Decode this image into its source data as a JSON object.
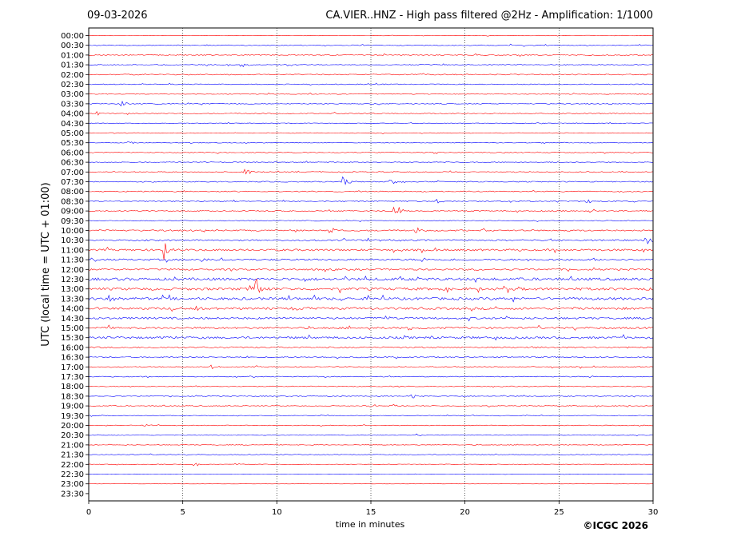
{
  "header": {
    "date": "09-03-2026",
    "title": "CA.VIER..HNZ - High pass filtered @2Hz - Amplification: 1/1000"
  },
  "credit": "©ICGC 2026",
  "chart_data": {
    "type": "line",
    "title": "CA.VIER..HNZ - High pass filtered @2Hz - Amplification: 1/1000",
    "xlabel": "time in minutes",
    "ylabel": "UTC (local time = UTC + 01:00)",
    "xlim": [
      0,
      30
    ],
    "x_ticks": [
      0,
      5,
      10,
      15,
      20,
      25,
      30
    ],
    "grid": "vertical dotted lines at x ticks",
    "row_colors": [
      "#ff0000",
      "#0000ff"
    ],
    "row_labels": [
      "00:00",
      "00:30",
      "01:00",
      "01:30",
      "02:00",
      "02:30",
      "03:00",
      "03:30",
      "04:00",
      "04:30",
      "05:00",
      "05:30",
      "06:00",
      "06:30",
      "07:00",
      "07:30",
      "08:00",
      "08:30",
      "09:00",
      "09:30",
      "10:00",
      "10:30",
      "11:00",
      "11:30",
      "12:00",
      "12:30",
      "13:00",
      "13:30",
      "14:00",
      "14:30",
      "15:00",
      "15:30",
      "16:00",
      "16:30",
      "17:00",
      "17:30",
      "18:00",
      "18:30",
      "19:00",
      "19:30",
      "20:00",
      "20:30",
      "21:00",
      "21:30",
      "22:00",
      "22:30",
      "23:00",
      "23:30"
    ],
    "trace_end_row": 47,
    "noise_level": [
      0.3,
      0.5,
      0.6,
      0.5,
      0.6,
      0.5,
      0.5,
      0.5,
      0.6,
      0.4,
      0.4,
      0.4,
      0.5,
      0.5,
      0.6,
      0.6,
      0.6,
      0.7,
      0.7,
      0.5,
      0.9,
      0.9,
      1.2,
      1.1,
      1.1,
      1.6,
      1.6,
      1.6,
      1.4,
      1.2,
      1.2,
      1.3,
      0.9,
      0.7,
      0.6,
      0.5,
      0.5,
      0.5,
      0.5,
      0.4,
      0.4,
      0.4,
      0.4,
      0.4,
      0.4,
      0.2,
      0.1,
      0.1
    ],
    "events": [
      {
        "row": 3,
        "t": 8.1,
        "amp": 4
      },
      {
        "row": 7,
        "t": 1.7,
        "amp": 4
      },
      {
        "row": 8,
        "t": 0.4,
        "amp": 3
      },
      {
        "row": 11,
        "t": 2.1,
        "amp": 3
      },
      {
        "row": 14,
        "t": 8.3,
        "amp": 4
      },
      {
        "row": 15,
        "t": 13.5,
        "amp": 6
      },
      {
        "row": 15,
        "t": 16.0,
        "amp": 5
      },
      {
        "row": 17,
        "t": 18.5,
        "amp": 3
      },
      {
        "row": 17,
        "t": 26.5,
        "amp": 3
      },
      {
        "row": 18,
        "t": 16.2,
        "amp": 8
      },
      {
        "row": 18,
        "t": 16.5,
        "amp": 6
      },
      {
        "row": 20,
        "t": 12.8,
        "amp": 6
      },
      {
        "row": 20,
        "t": 17.3,
        "amp": 7
      },
      {
        "row": 21,
        "t": 13.5,
        "amp": 3
      },
      {
        "row": 21,
        "t": 29.6,
        "amp": 7
      },
      {
        "row": 22,
        "t": 4.0,
        "amp": 12
      },
      {
        "row": 23,
        "t": 6.0,
        "amp": 3
      },
      {
        "row": 26,
        "t": 8.8,
        "amp": 22
      },
      {
        "row": 27,
        "t": 1.0,
        "amp": 5
      },
      {
        "row": 28,
        "t": 5.6,
        "amp": 4
      },
      {
        "row": 28,
        "t": 10.8,
        "amp": 3
      },
      {
        "row": 29,
        "t": 15.8,
        "amp": 3
      },
      {
        "row": 30,
        "t": 17.0,
        "amp": 3
      },
      {
        "row": 31,
        "t": 4.2,
        "amp": 3
      },
      {
        "row": 34,
        "t": 6.5,
        "amp": 3
      },
      {
        "row": 37,
        "t": 17.2,
        "amp": 4
      },
      {
        "row": 38,
        "t": 15.0,
        "amp": 3
      },
      {
        "row": 38,
        "t": 16.2,
        "amp": 3
      },
      {
        "row": 40,
        "t": 3.0,
        "amp": 3
      },
      {
        "row": 41,
        "t": 17.4,
        "amp": 2
      },
      {
        "row": 44,
        "t": 5.6,
        "amp": 3
      },
      {
        "row": 44,
        "t": 8.0,
        "amp": 2
      }
    ]
  }
}
